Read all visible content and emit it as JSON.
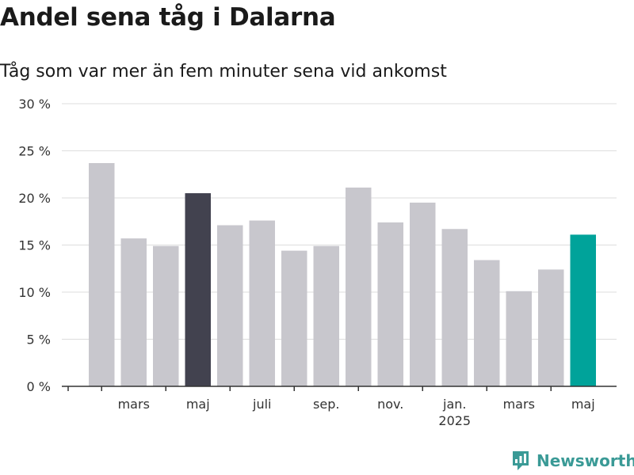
{
  "chart_data": {
    "type": "bar",
    "title": "Andel sena tåg i Dalarna",
    "subtitle": "Tåg som var mer än fem minuter sena vid ankomst",
    "values": [
      23.7,
      15.7,
      14.9,
      20.5,
      17.1,
      17.6,
      14.4,
      14.9,
      21.1,
      17.4,
      19.5,
      16.7,
      13.4,
      10.1,
      12.4,
      16.1
    ],
    "bar_colors": [
      "#c8c7cd",
      "#c8c7cd",
      "#c8c7cd",
      "#42424f",
      "#c8c7cd",
      "#c8c7cd",
      "#c8c7cd",
      "#c8c7cd",
      "#c8c7cd",
      "#c8c7cd",
      "#c8c7cd",
      "#c8c7cd",
      "#c8c7cd",
      "#c8c7cd",
      "#c8c7cd",
      "#00a39a"
    ],
    "x_tick_labels": [
      {
        "bar_index": 1,
        "label": "mars",
        "sublabel": ""
      },
      {
        "bar_index": 3,
        "label": "maj",
        "sublabel": ""
      },
      {
        "bar_index": 5,
        "label": "juli",
        "sublabel": ""
      },
      {
        "bar_index": 7,
        "label": "sep.",
        "sublabel": ""
      },
      {
        "bar_index": 9,
        "label": "nov.",
        "sublabel": ""
      },
      {
        "bar_index": 11,
        "label": "jan.",
        "sublabel": "2025"
      },
      {
        "bar_index": 13,
        "label": "mars",
        "sublabel": ""
      },
      {
        "bar_index": 15,
        "label": "maj",
        "sublabel": ""
      }
    ],
    "y_ticks": [
      0,
      5,
      10,
      15,
      20,
      25,
      30
    ],
    "y_tick_labels": [
      "0 %",
      "5 %",
      "10 %",
      "15 %",
      "20 %",
      "25 %",
      "30 %"
    ],
    "ylim": [
      0,
      30
    ],
    "grid": true,
    "xlabel": "",
    "ylabel": ""
  },
  "brand": {
    "name": "Newsworthy"
  },
  "colors": {
    "gridline": "#dddddd",
    "axis": "#333333",
    "brand": "#3a9a96"
  }
}
